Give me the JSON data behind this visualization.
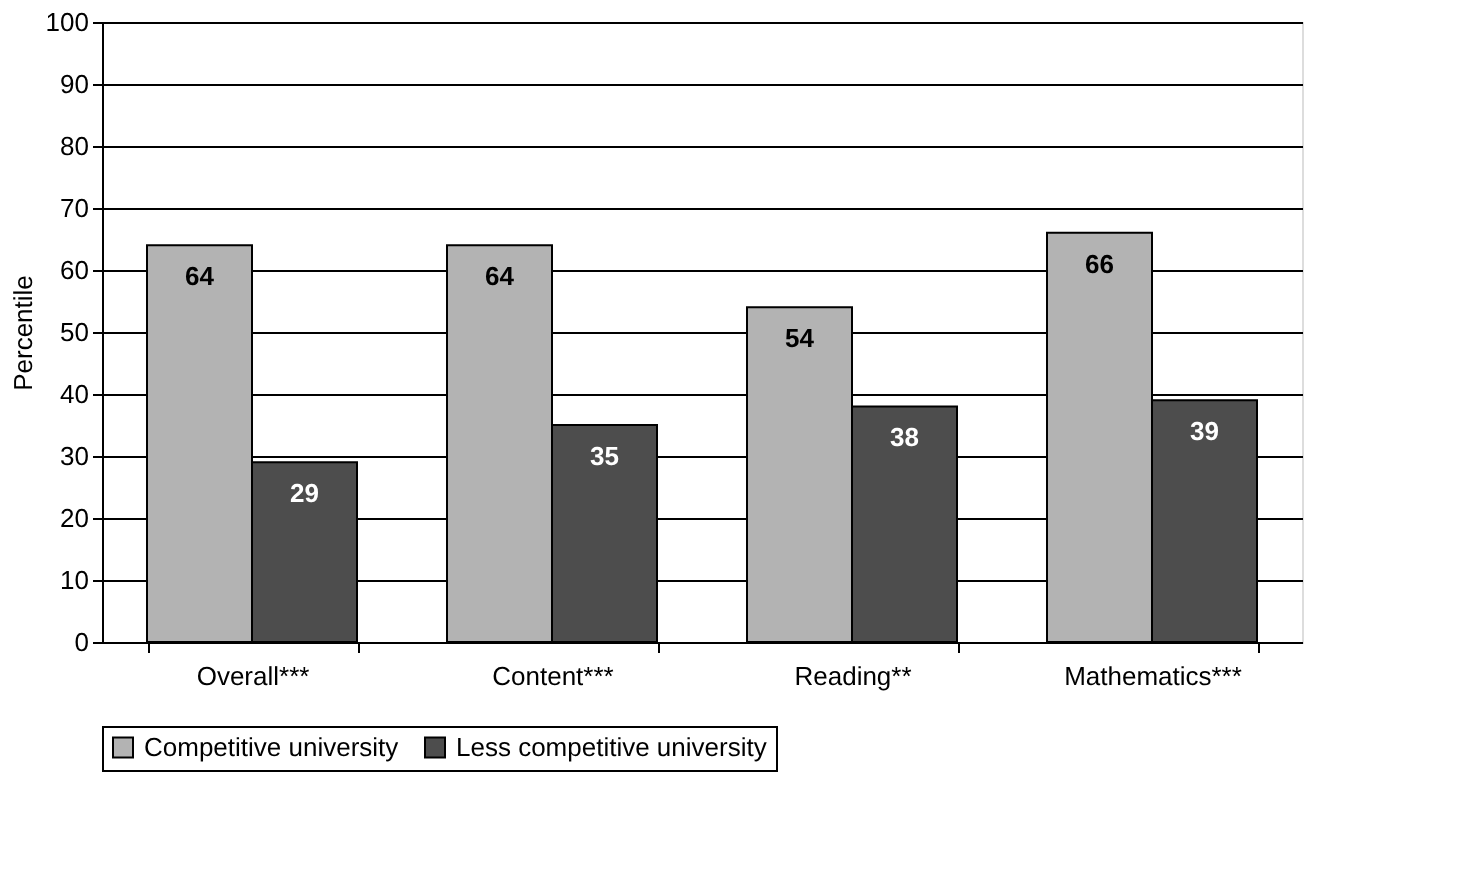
{
  "chart_data": {
    "type": "bar",
    "ylabel": "Percentile",
    "categories": [
      "Overall***",
      "Content***",
      "Reading**",
      "Mathematics***"
    ],
    "series": [
      {
        "name": "Competitive university",
        "color": "#b3b3b3",
        "values": [
          64,
          64,
          54,
          66
        ]
      },
      {
        "name": "Less competitive university",
        "color": "#4d4d4d",
        "values": [
          29,
          35,
          38,
          39
        ]
      }
    ],
    "ylim": [
      0,
      100
    ],
    "yticks": [
      0,
      10,
      20,
      30,
      40,
      50,
      60,
      70,
      80,
      90,
      100
    ],
    "grid": "y",
    "data_labels": true,
    "legend": "bottom"
  }
}
